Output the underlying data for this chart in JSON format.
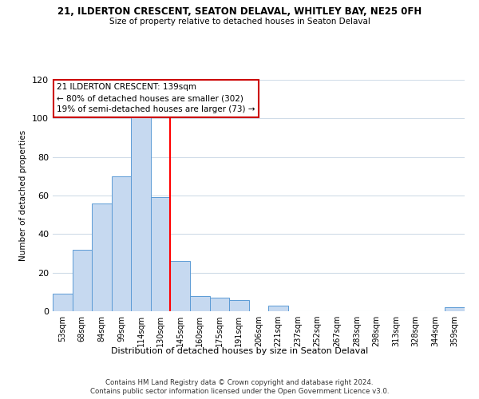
{
  "title": "21, ILDERTON CRESCENT, SEATON DELAVAL, WHITLEY BAY, NE25 0FH",
  "subtitle": "Size of property relative to detached houses in Seaton Delaval",
  "xlabel": "Distribution of detached houses by size in Seaton Delaval",
  "ylabel": "Number of detached properties",
  "bar_labels": [
    "53sqm",
    "68sqm",
    "84sqm",
    "99sqm",
    "114sqm",
    "130sqm",
    "145sqm",
    "160sqm",
    "175sqm",
    "191sqm",
    "206sqm",
    "221sqm",
    "237sqm",
    "252sqm",
    "267sqm",
    "283sqm",
    "298sqm",
    "313sqm",
    "328sqm",
    "344sqm",
    "359sqm"
  ],
  "bar_values": [
    9,
    32,
    56,
    70,
    101,
    59,
    26,
    8,
    7,
    6,
    0,
    3,
    0,
    0,
    0,
    0,
    0,
    0,
    0,
    0,
    2
  ],
  "bar_color": "#c6d9f0",
  "bar_edge_color": "#5b9bd5",
  "vline_x": 5.5,
  "vline_color": "red",
  "ylim": [
    0,
    120
  ],
  "yticks": [
    0,
    20,
    40,
    60,
    80,
    100,
    120
  ],
  "annotation_title": "21 ILDERTON CRESCENT: 139sqm",
  "annotation_line1": "← 80% of detached houses are smaller (302)",
  "annotation_line2": "19% of semi-detached houses are larger (73) →",
  "annotation_box_color": "#ffffff",
  "annotation_box_edge": "#cc0000",
  "footer_line1": "Contains HM Land Registry data © Crown copyright and database right 2024.",
  "footer_line2": "Contains public sector information licensed under the Open Government Licence v3.0.",
  "background_color": "#ffffff",
  "grid_color": "#d0dce8"
}
